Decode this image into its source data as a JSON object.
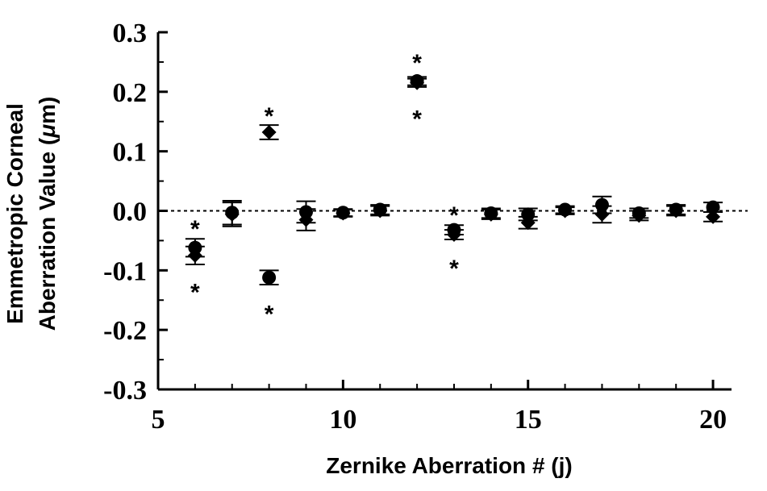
{
  "chart_data": {
    "type": "scatter",
    "xlabel": "Zernike Aberration # (j)",
    "ylabel_line1": "Emmetropic Corneal",
    "ylabel_line2_prefix": "Aberration Value (",
    "ylabel_mu": "μ",
    "ylabel_line2_suffix": "m)",
    "xlim": [
      5,
      20.5
    ],
    "ylim": [
      -0.3,
      0.3
    ],
    "xticks": [
      5,
      10,
      15,
      20
    ],
    "xtick_labels": [
      "5",
      "10",
      "15",
      "20"
    ],
    "yticks": [
      0.3,
      0.2,
      0.1,
      0.0,
      -0.1,
      -0.2,
      -0.3
    ],
    "ytick_labels": [
      "0.3",
      "0.2",
      "0.1",
      "0.0",
      "-0.1",
      "-0.2",
      "-0.3"
    ],
    "reference_line": {
      "y": 0,
      "style": "dotted"
    },
    "series": [
      {
        "marker": "circle",
        "points": [
          {
            "x": 6,
            "y": -0.062,
            "err": 0.015
          },
          {
            "x": 7,
            "y": -0.003,
            "err": 0.02
          },
          {
            "x": 8,
            "y": -0.112,
            "err": 0.012
          },
          {
            "x": 9,
            "y": -0.002,
            "err": 0.018
          },
          {
            "x": 10,
            "y": -0.003,
            "err": 0.006
          },
          {
            "x": 11,
            "y": 0.002,
            "err": 0.008
          },
          {
            "x": 12,
            "y": 0.218,
            "err": 0.007
          },
          {
            "x": 13,
            "y": -0.032,
            "err": 0.008
          },
          {
            "x": 14,
            "y": -0.004,
            "err": 0.008
          },
          {
            "x": 15,
            "y": -0.006,
            "err": 0.01
          },
          {
            "x": 16,
            "y": 0.002,
            "err": 0.006
          },
          {
            "x": 17,
            "y": 0.01,
            "err": 0.014
          },
          {
            "x": 18,
            "y": -0.004,
            "err": 0.008
          },
          {
            "x": 19,
            "y": 0.002,
            "err": 0.008
          },
          {
            "x": 20,
            "y": 0.006,
            "err": 0.008
          }
        ]
      },
      {
        "marker": "diamond",
        "points": [
          {
            "x": 6,
            "y": -0.075,
            "err": 0.015
          },
          {
            "x": 7,
            "y": -0.006,
            "err": 0.02
          },
          {
            "x": 8,
            "y": 0.132,
            "err": 0.012
          },
          {
            "x": 9,
            "y": -0.015,
            "err": 0.018
          },
          {
            "x": 10,
            "y": -0.004,
            "err": 0.006
          },
          {
            "x": 11,
            "y": 0.0,
            "err": 0.008
          },
          {
            "x": 12,
            "y": 0.215,
            "err": 0.007
          },
          {
            "x": 13,
            "y": -0.04,
            "err": 0.008
          },
          {
            "x": 14,
            "y": -0.006,
            "err": 0.008
          },
          {
            "x": 15,
            "y": -0.02,
            "err": 0.01
          },
          {
            "x": 16,
            "y": 0.0,
            "err": 0.006
          },
          {
            "x": 17,
            "y": -0.006,
            "err": 0.014
          },
          {
            "x": 18,
            "y": -0.008,
            "err": 0.008
          },
          {
            "x": 19,
            "y": 0.0,
            "err": 0.008
          },
          {
            "x": 20,
            "y": -0.01,
            "err": 0.008
          }
        ]
      }
    ],
    "annotations": [
      {
        "text": "*",
        "x": 6,
        "y": -0.017
      },
      {
        "text": "*",
        "x": 6,
        "y": -0.123
      },
      {
        "text": "*",
        "x": 8,
        "y": 0.173
      },
      {
        "text": "*",
        "x": 8,
        "y": -0.16
      },
      {
        "text": "*",
        "x": 12,
        "y": 0.262
      },
      {
        "text": "*",
        "x": 12,
        "y": 0.168
      },
      {
        "text": "*",
        "x": 13,
        "y": 0.006
      },
      {
        "text": "*",
        "x": 13,
        "y": -0.083
      }
    ]
  }
}
